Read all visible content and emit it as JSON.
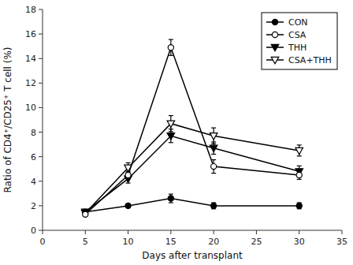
{
  "chart_data": {
    "type": "line",
    "x": [
      5,
      10,
      15,
      20,
      30
    ],
    "xlabel": "Days after transplant",
    "ylabel": "Ratio of CD4⁺/CD25⁺ T cell (%)",
    "xlim": [
      0,
      35
    ],
    "ylim": [
      0,
      18
    ],
    "xticks": [
      0,
      5,
      10,
      15,
      20,
      25,
      30,
      35
    ],
    "yticks": [
      0,
      2,
      4,
      6,
      8,
      10,
      12,
      14,
      16,
      18
    ],
    "grid": false,
    "legend": "upper right",
    "series": [
      {
        "name": "CON",
        "color": "#000000",
        "marker": "circle",
        "values": [
          1.5,
          2.0,
          2.6,
          2.0,
          2.0
        ],
        "errors": [
          0.15,
          0.15,
          0.35,
          0.25,
          0.25
        ]
      },
      {
        "name": "CSA",
        "color": "#000000",
        "marker": "circle-open",
        "values": [
          1.3,
          4.5,
          14.9,
          5.2,
          4.5
        ],
        "errors": [
          0.15,
          0.3,
          0.65,
          0.55,
          0.35
        ]
      },
      {
        "name": "THH",
        "color": "#000000",
        "marker": "triangle-down",
        "values": [
          1.5,
          4.2,
          7.7,
          6.7,
          4.8
        ],
        "errors": [
          0.2,
          0.35,
          0.55,
          0.5,
          0.45
        ]
      },
      {
        "name": "CSA+THH",
        "color": "#000000",
        "marker": "triangle-down-open",
        "values": [
          1.4,
          5.1,
          8.7,
          7.7,
          6.5
        ],
        "errors": [
          0.2,
          0.4,
          0.65,
          0.65,
          0.45
        ]
      }
    ]
  }
}
